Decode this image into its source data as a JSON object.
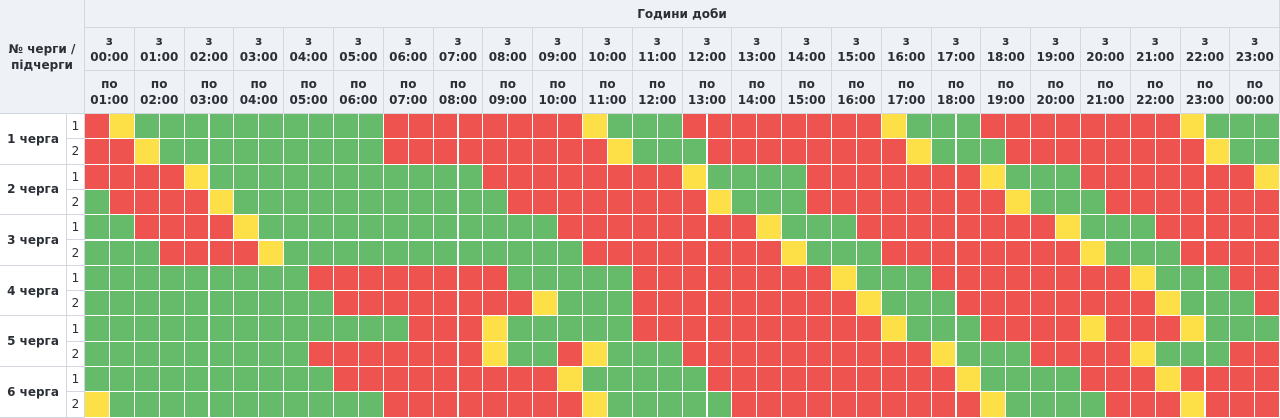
{
  "header": {
    "title": "Години доби",
    "row_header_line1": "№ черги /",
    "row_header_line2": "підчерги",
    "from_word": "з",
    "to_word": "по",
    "from_times": [
      "00:00",
      "01:00",
      "02:00",
      "03:00",
      "04:00",
      "05:00",
      "06:00",
      "07:00",
      "08:00",
      "09:00",
      "10:00",
      "11:00",
      "12:00",
      "13:00",
      "14:00",
      "15:00",
      "16:00",
      "17:00",
      "18:00",
      "19:00",
      "20:00",
      "21:00",
      "22:00",
      "23:00"
    ],
    "to_times": [
      "01:00",
      "02:00",
      "03:00",
      "04:00",
      "05:00",
      "06:00",
      "07:00",
      "08:00",
      "09:00",
      "10:00",
      "11:00",
      "12:00",
      "13:00",
      "14:00",
      "15:00",
      "16:00",
      "17:00",
      "18:00",
      "19:00",
      "20:00",
      "21:00",
      "22:00",
      "23:00",
      "00:00"
    ]
  },
  "queues": [
    {
      "label": "1 черга",
      "subqueues": [
        "1",
        "2"
      ]
    },
    {
      "label": "2 черга",
      "subqueues": [
        "1",
        "2"
      ]
    },
    {
      "label": "3 черга",
      "subqueues": [
        "1",
        "2"
      ]
    },
    {
      "label": "4 черга",
      "subqueues": [
        "1",
        "2"
      ]
    },
    {
      "label": "5 черга",
      "subqueues": [
        "1",
        "2"
      ]
    },
    {
      "label": "6 черга",
      "subqueues": [
        "1",
        "2"
      ]
    }
  ],
  "colors": {
    "R": "#ef5350",
    "G": "#66bb6a",
    "Y": "#fde047"
  },
  "schedule": [
    "RYGGGGGGGGGGRRRRRRRRYGGGRRRRRRRRYGGGRRRRRRRRYGGG",
    "RRYGGGGGGGGGRRRRRRRRRYGGGRRRRRRRRYGGGRRRRRRRRYGG",
    "RRRRYGGGGGGGGGGGRRRRRRRRYGGGGRRRRRRRYGGGRRRRRRRY",
    "GRRRRYGGGGGGGGGGGRRRRRRRRYGGGRRRRRRRRYGGGRRRRRRR",
    "GGRRRRYGGGGGGGGGGGGRRRRRRRRYGGGRRRRRRRRYGGGRRRRR",
    "GGGRRRRYGGGGGGGGGGGGRRRRRRRRYGGGRRRRRRRRYGGGRRRR",
    "GGGGGGGGGRRRRRRRRGGGGGRRRRRRRRYGGGRRRRRRRRYGGGRR",
    "GGGGGGGGGGRRRRRRRRYGGGRRRRRRRRRYGGGRRRRRRRRYGGGR",
    "GGGGGGGGGGGGGRRRYGGGGGRRRRRRRRRRYGGGRRRRYRRRYGGG",
    "GGGGGGGGGRRRRRRRYGGRYGGGRRRRRRRRRRYGGGRRRRYGGGRR",
    "GGGGGGGGGGRRRRRRRRRYGGGGGRRRRRRRRRRYGGGGRRRYRRRR",
    "YGGGGGGGGGGGRRRRRRRRYGGGGGRRRRRRRRRRYGGGGRRRYRRR"
  ]
}
